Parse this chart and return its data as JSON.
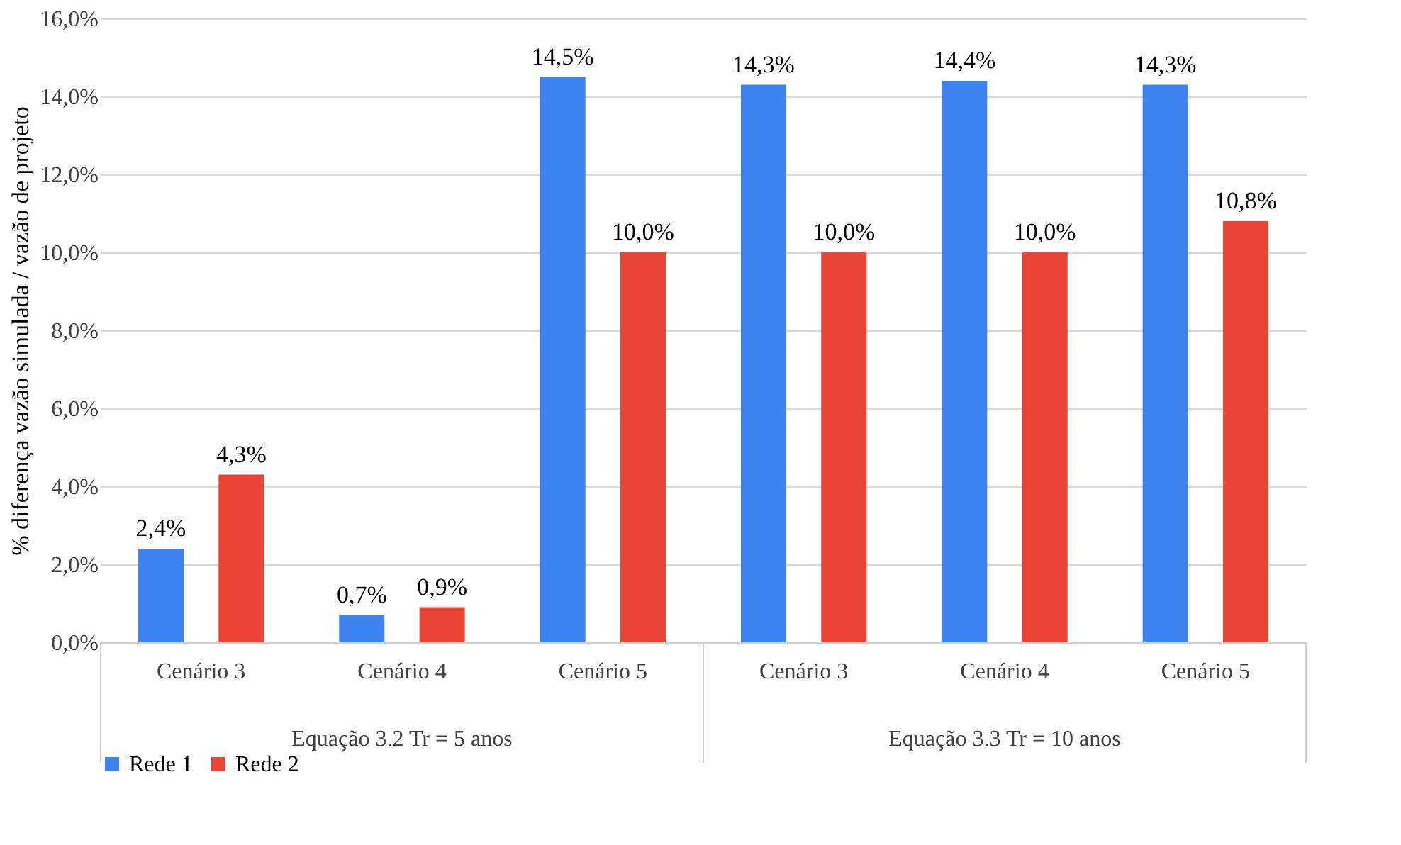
{
  "chart_data": {
    "type": "bar",
    "ylabel": "% diferença  vazão simulada  / vazão de projeto",
    "categories": [
      "Cenário 3",
      "Cenário 4",
      "Cenário 5",
      "Cenário 3",
      "Cenário 4",
      "Cenário 5"
    ],
    "series": [
      {
        "name": "Rede 1",
        "color": "#3f83f0",
        "values": [
          2.4,
          0.7,
          14.5,
          14.3,
          14.4,
          14.3
        ],
        "value_labels": [
          "2,4%",
          "0,7%",
          "14,5%",
          "14,3%",
          "14,4%",
          "14,3%"
        ]
      },
      {
        "name": "Rede 2",
        "color": "#e94436",
        "values": [
          4.3,
          0.9,
          10.0,
          10.0,
          10.0,
          10.8
        ],
        "value_labels": [
          "4,3%",
          "0,9%",
          "10,0%",
          "10,0%",
          "10,0%",
          "10,8%"
        ]
      }
    ],
    "annotations": [
      "Equação 3.2 Tr = 5 anos",
      "Equação 3.3  Tr = 10 anos"
    ],
    "ylim": [
      0,
      16
    ],
    "yticks": [
      {
        "value": 0,
        "label": "0,0%"
      },
      {
        "value": 2,
        "label": "2,0%"
      },
      {
        "value": 4,
        "label": "4,0%"
      },
      {
        "value": 6,
        "label": "6,0%"
      },
      {
        "value": 8,
        "label": "8,0%"
      },
      {
        "value": 10,
        "label": "10,0%"
      },
      {
        "value": 12,
        "label": "12,0%"
      },
      {
        "value": 14,
        "label": "14,0%"
      },
      {
        "value": 16,
        "label": "16,0%"
      }
    ],
    "grid": "y",
    "legend": "bottom"
  }
}
